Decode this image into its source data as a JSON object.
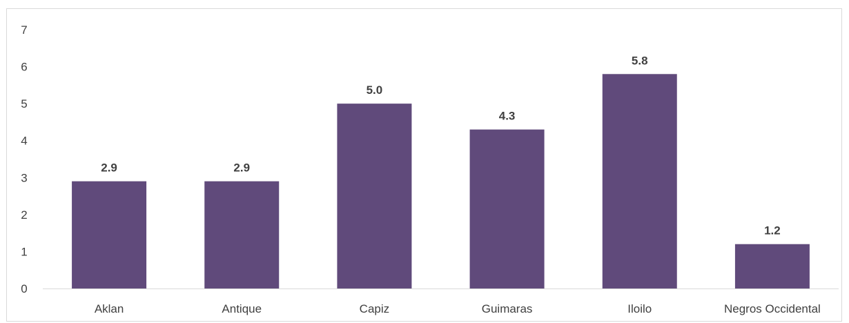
{
  "chart_data": {
    "type": "bar",
    "title": "",
    "xlabel": "",
    "ylabel": "",
    "categories": [
      "Aklan",
      "Antique",
      "Capiz",
      "Guimaras",
      "Iloilo",
      "Negros Occidental"
    ],
    "values": [
      2.9,
      2.9,
      5.0,
      4.3,
      5.8,
      1.2
    ],
    "data_labels": [
      "2.9",
      "2.9",
      "5.0",
      "4.3",
      "5.8",
      "1.2"
    ],
    "ylim": [
      0,
      7
    ],
    "yticks": [
      0,
      1,
      2,
      3,
      4,
      5,
      6,
      7
    ],
    "bar_color": "#604a7b",
    "grid": false,
    "legend": "none"
  }
}
